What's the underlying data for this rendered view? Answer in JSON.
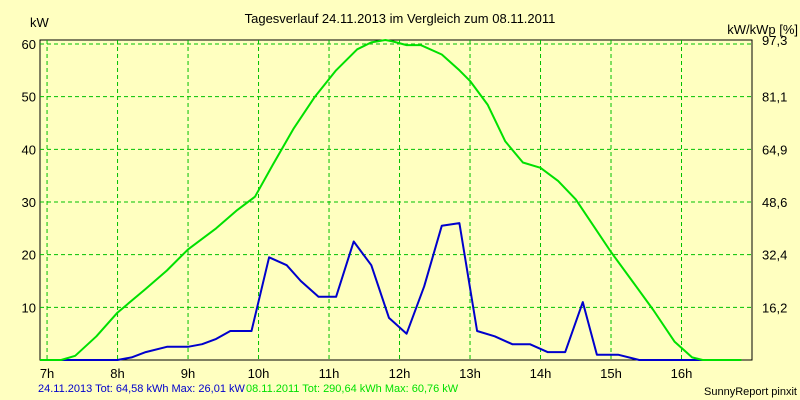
{
  "chart_data": {
    "type": "line",
    "title": "Tagesverlauf 24.11.2013 im Vergleich zum 08.11.2011",
    "ylabel_left": "kW",
    "ylabel_right": "kW/kWp [%]",
    "xlim": [
      6.9,
      17.0
    ],
    "ylim": [
      0,
      60.76
    ],
    "x_tick_values": [
      7,
      8,
      9,
      10,
      11,
      12,
      13,
      14,
      15,
      16
    ],
    "x_tick_labels": [
      "7h",
      "8h",
      "9h",
      "10h",
      "11h",
      "12h",
      "13h",
      "14h",
      "15h",
      "16h"
    ],
    "y_left_tick_values": [
      10,
      20,
      30,
      40,
      50,
      60
    ],
    "y_left_tick_labels": [
      "10",
      "20",
      "30",
      "40",
      "50",
      "60"
    ],
    "y_right_tick_values": [
      10,
      20,
      30,
      40,
      50,
      60.76
    ],
    "y_right_tick_labels": [
      "16,2",
      "32,4",
      "48,6",
      "64,9",
      "81,1",
      "97,3"
    ],
    "grid": true,
    "series": [
      {
        "name": "24.11.2013",
        "color": "#0000cc",
        "x": [
          6.9,
          8.0,
          8.2,
          8.4,
          8.7,
          9.0,
          9.2,
          9.4,
          9.6,
          9.9,
          10.15,
          10.4,
          10.6,
          10.85,
          11.1,
          11.35,
          11.6,
          11.85,
          12.1,
          12.35,
          12.6,
          12.85,
          13.1,
          13.35,
          13.6,
          13.85,
          14.1,
          14.35,
          14.6,
          14.8,
          15.1,
          15.4,
          15.7,
          16.0,
          16.4,
          16.6
        ],
        "y": [
          0,
          0,
          0.5,
          1.5,
          2.5,
          2.5,
          3.0,
          4.0,
          5.5,
          5.5,
          19.5,
          18.0,
          15.0,
          12.0,
          12.0,
          22.5,
          18.0,
          8.0,
          5.0,
          14.0,
          25.5,
          26.0,
          5.5,
          4.5,
          3.0,
          3.0,
          1.5,
          1.5,
          11.0,
          1.0,
          1.0,
          0,
          0,
          0,
          0,
          0
        ]
      },
      {
        "name": "08.11.2011",
        "color": "#00e000",
        "x": [
          6.9,
          7.2,
          7.4,
          7.7,
          8.0,
          8.4,
          8.7,
          9.0,
          9.4,
          9.7,
          9.95,
          10.2,
          10.5,
          10.8,
          11.1,
          11.4,
          11.6,
          11.8,
          11.9,
          12.1,
          12.3,
          12.6,
          12.85,
          13.0,
          13.25,
          13.5,
          13.75,
          14.0,
          14.25,
          14.5,
          14.75,
          15.0,
          15.3,
          15.6,
          15.9,
          16.15,
          16.3,
          16.5,
          16.85
        ],
        "y": [
          0,
          0,
          0.8,
          4.5,
          9.0,
          13.5,
          17.0,
          21.0,
          25.0,
          28.5,
          31.0,
          37.0,
          44.0,
          50.0,
          55.0,
          59.0,
          60.3,
          60.76,
          60.5,
          59.8,
          59.8,
          58.0,
          55.0,
          53.0,
          48.5,
          41.5,
          37.5,
          36.5,
          34.0,
          30.5,
          25.5,
          20.5,
          15.0,
          9.5,
          3.5,
          0.5,
          0,
          0,
          0
        ]
      }
    ]
  },
  "footer": {
    "series1_summary": "24.11.2013 Tot: 64,58 kWh Max: 26,01 kW",
    "series2_summary": "08.11.2011 Tot: 290,64 kWh Max: 60,76 kW",
    "credit": "SunnyReport pinxit"
  },
  "colors": {
    "background": "#ffffc0",
    "grid": "#00c000",
    "series1": "#0000cc",
    "series2": "#00e000"
  }
}
